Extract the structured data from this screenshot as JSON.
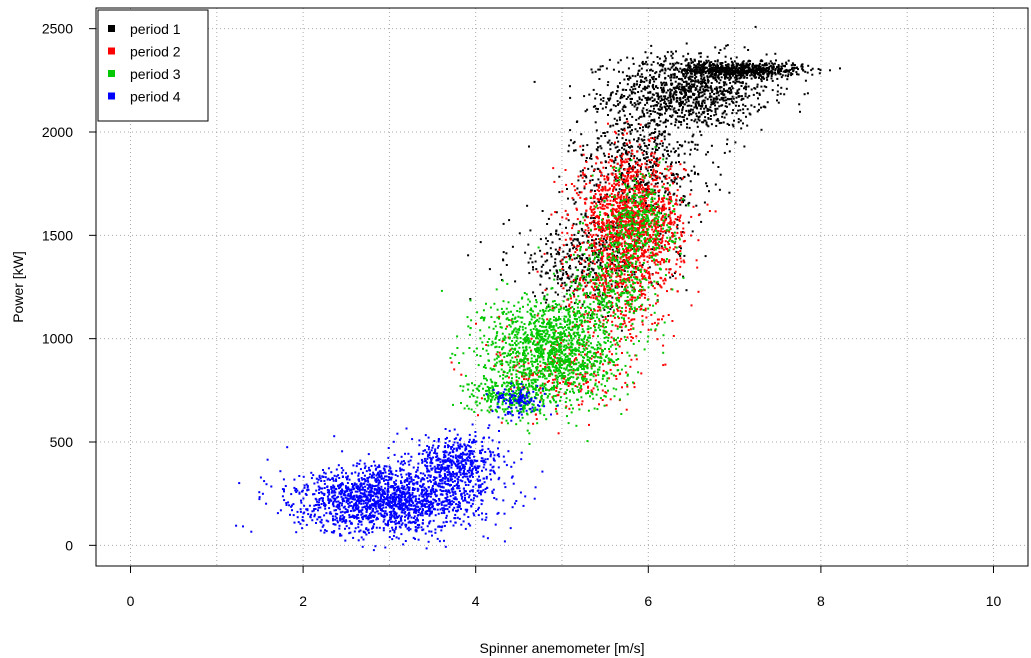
{
  "chart_data": {
    "type": "scatter",
    "title": "",
    "xlabel": "Spinner anemometer [m/s]",
    "ylabel": "Power [kW]",
    "xlim": [
      -0.4,
      10.4
    ],
    "ylim": [
      -100,
      2600
    ],
    "xticks": [
      "0",
      "2",
      "4",
      "6",
      "8",
      "10"
    ],
    "yticks": [
      "0",
      "500",
      "1000",
      "1500",
      "2000",
      "2500"
    ],
    "grid": true,
    "legend_position": "top-left",
    "series": [
      {
        "name": "period 1",
        "color": "#000000",
        "clusters": [
          {
            "cx": 6.5,
            "cy": 2200,
            "sx": 0.45,
            "sy": 90,
            "n": 1100
          },
          {
            "cx": 7.1,
            "cy": 2300,
            "sx": 0.35,
            "sy": 18,
            "n": 650
          },
          {
            "cx": 5.9,
            "cy": 1850,
            "sx": 0.4,
            "sy": 170,
            "n": 650
          },
          {
            "cx": 5.3,
            "cy": 1380,
            "sx": 0.45,
            "sy": 110,
            "n": 450
          }
        ]
      },
      {
        "name": "period 2",
        "color": "#ff0000",
        "clusters": [
          {
            "cx": 5.8,
            "cy": 1560,
            "sx": 0.3,
            "sy": 160,
            "n": 1500
          },
          {
            "cx": 5.6,
            "cy": 1200,
            "sx": 0.3,
            "sy": 120,
            "n": 280
          },
          {
            "cx": 5.0,
            "cy": 850,
            "sx": 0.4,
            "sy": 110,
            "n": 250
          }
        ]
      },
      {
        "name": "period 3",
        "color": "#00c800",
        "clusters": [
          {
            "cx": 4.9,
            "cy": 950,
            "sx": 0.4,
            "sy": 130,
            "n": 1400
          },
          {
            "cx": 4.4,
            "cy": 720,
            "sx": 0.25,
            "sy": 45,
            "n": 300
          },
          {
            "cx": 5.6,
            "cy": 1280,
            "sx": 0.25,
            "sy": 120,
            "n": 350
          },
          {
            "cx": 5.9,
            "cy": 1580,
            "sx": 0.2,
            "sy": 110,
            "n": 350
          }
        ]
      },
      {
        "name": "period 4",
        "color": "#0000ff",
        "clusters": [
          {
            "cx": 3.0,
            "cy": 220,
            "sx": 0.55,
            "sy": 80,
            "n": 1800
          },
          {
            "cx": 3.8,
            "cy": 400,
            "sx": 0.25,
            "sy": 70,
            "n": 500
          },
          {
            "cx": 4.5,
            "cy": 700,
            "sx": 0.15,
            "sy": 35,
            "n": 120
          }
        ]
      }
    ]
  }
}
